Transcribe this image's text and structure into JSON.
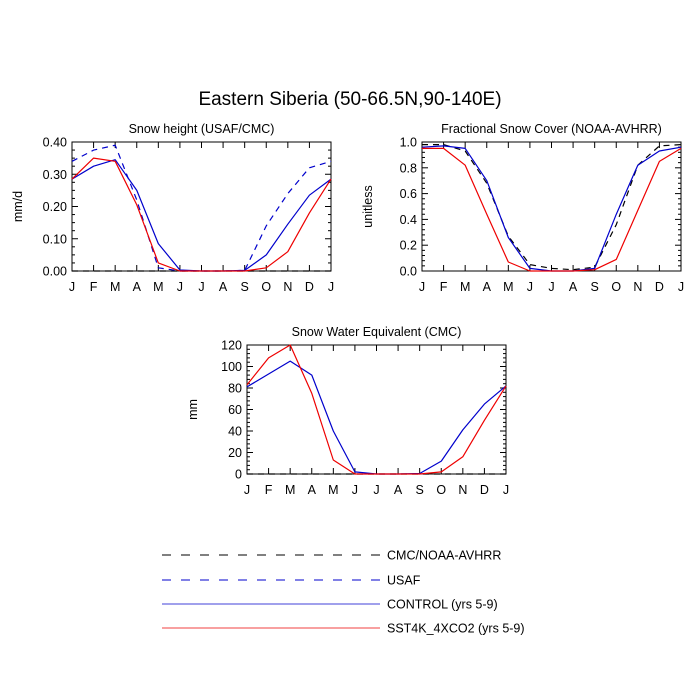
{
  "title": "Eastern Siberia (50-66.5N,90-140E)",
  "months": [
    "J",
    "F",
    "M",
    "A",
    "M",
    "J",
    "J",
    "A",
    "S",
    "O",
    "N",
    "D",
    "J"
  ],
  "legend": [
    {
      "label": "CMC/NOAA-AVHRR",
      "color": "#000000",
      "dash": true
    },
    {
      "label": "USAF",
      "color": "#0000cc",
      "dash": true
    },
    {
      "label": "CONTROL (yrs 5-9)",
      "color": "#0000cc",
      "dash": false
    },
    {
      "label": "SST4K_4XCO2 (yrs 5-9)",
      "color": "#ee0000",
      "dash": false
    }
  ],
  "chart_data": [
    {
      "type": "line",
      "title": "Snow height (USAF/CMC)",
      "ylabel": "mm/d",
      "ylim": [
        0,
        0.4
      ],
      "yticks": [
        "0.00",
        "0.10",
        "0.20",
        "0.30",
        "0.40"
      ],
      "x": [
        "J",
        "F",
        "M",
        "A",
        "M",
        "J",
        "J",
        "A",
        "S",
        "O",
        "N",
        "D",
        "J"
      ],
      "series": [
        {
          "name": "CMC/NOAA-AVHRR",
          "color": "#000000",
          "dash": true,
          "values": [
            0,
            0,
            0,
            0,
            0,
            0,
            0,
            0,
            0,
            0,
            0,
            0,
            0
          ]
        },
        {
          "name": "USAF",
          "color": "#0000cc",
          "dash": true,
          "values": [
            0.34,
            0.375,
            0.39,
            0.22,
            0.01,
            0,
            0,
            0,
            0.002,
            0.14,
            0.24,
            0.32,
            0.34
          ]
        },
        {
          "name": "CONTROL (yrs 5-9)",
          "color": "#0000cc",
          "dash": false,
          "values": [
            0.285,
            0.325,
            0.345,
            0.25,
            0.085,
            0.003,
            0,
            0,
            0.002,
            0.05,
            0.145,
            0.235,
            0.285
          ]
        },
        {
          "name": "SST4K_4XCO2 (yrs 5-9)",
          "color": "#ee0000",
          "dash": false,
          "values": [
            0.285,
            0.35,
            0.34,
            0.205,
            0.025,
            0,
            0,
            0,
            0,
            0.01,
            0.06,
            0.18,
            0.285
          ]
        }
      ]
    },
    {
      "type": "line",
      "title": "Fractional Snow Cover (NOAA-AVHRR)",
      "ylabel": "unitless",
      "ylim": [
        0,
        1.0
      ],
      "yticks": [
        "0.0",
        "0.2",
        "0.4",
        "0.6",
        "0.8",
        "1.0"
      ],
      "x": [
        "J",
        "F",
        "M",
        "A",
        "M",
        "J",
        "J",
        "A",
        "S",
        "O",
        "N",
        "D",
        "J"
      ],
      "series": [
        {
          "name": "CMC/NOAA-AVHRR",
          "color": "#000000",
          "dash": true,
          "values": [
            0.98,
            0.98,
            0.93,
            0.68,
            0.27,
            0.05,
            0.02,
            0.01,
            0.03,
            0.36,
            0.82,
            0.97,
            0.98
          ]
        },
        {
          "name": "CONTROL (yrs 5-9)",
          "color": "#0000cc",
          "dash": false,
          "values": [
            0.96,
            0.97,
            0.95,
            0.7,
            0.26,
            0.02,
            0,
            0,
            0.02,
            0.44,
            0.82,
            0.93,
            0.96
          ]
        },
        {
          "name": "SST4K_4XCO2 (yrs 5-9)",
          "color": "#ee0000",
          "dash": false,
          "values": [
            0.95,
            0.95,
            0.82,
            0.44,
            0.07,
            0,
            0,
            0,
            0.01,
            0.09,
            0.47,
            0.85,
            0.95
          ]
        }
      ]
    },
    {
      "type": "line",
      "title": "Snow Water Equivalent (CMC)",
      "ylabel": "mm",
      "ylim": [
        0,
        120
      ],
      "yticks": [
        "0",
        "20",
        "40",
        "60",
        "80",
        "100",
        "120"
      ],
      "x": [
        "J",
        "F",
        "M",
        "A",
        "M",
        "J",
        "J",
        "A",
        "S",
        "O",
        "N",
        "D",
        "J"
      ],
      "series": [
        {
          "name": "CMC/NOAA-AVHRR",
          "color": "#000000",
          "dash": true,
          "values": [
            0,
            0,
            0,
            0,
            0,
            0,
            0,
            0,
            0,
            0,
            0,
            0,
            0
          ]
        },
        {
          "name": "CONTROL (yrs 5-9)",
          "color": "#0000cc",
          "dash": false,
          "values": [
            81,
            93,
            105,
            92,
            40,
            2,
            0,
            0,
            0.5,
            12,
            41,
            65,
            82
          ]
        },
        {
          "name": "SST4K_4XCO2 (yrs 5-9)",
          "color": "#ee0000",
          "dash": false,
          "values": [
            83,
            108,
            120,
            75,
            13,
            0,
            0,
            0,
            0,
            2,
            16,
            50,
            82
          ]
        }
      ]
    }
  ]
}
